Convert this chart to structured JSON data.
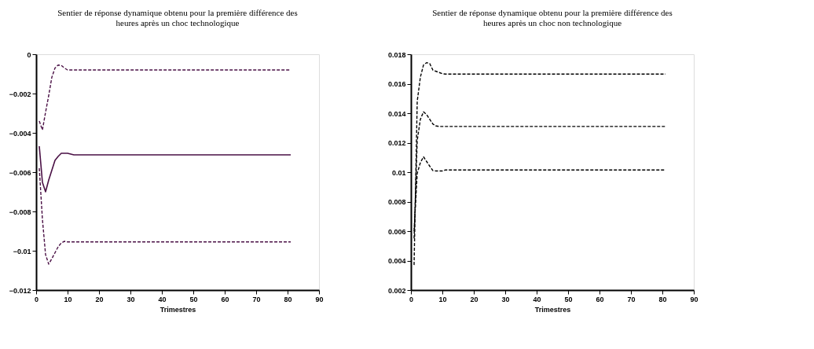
{
  "chart_data": [
    {
      "type": "line",
      "title": "Sentier de réponse dynamique obtenu pour la première différence des heures après un choc technologique",
      "xlabel": "Trimestres",
      "x": [
        1,
        2,
        3,
        4,
        5,
        6,
        7,
        8,
        9,
        10,
        11,
        12,
        81
      ],
      "xlim": [
        0,
        90
      ],
      "xticks": [
        0,
        10,
        20,
        30,
        40,
        50,
        60,
        70,
        80,
        90
      ],
      "ylim": [
        -0.012,
        0
      ],
      "yticks": [
        -0.012,
        -0.01,
        -0.008,
        -0.006,
        -0.004,
        -0.002,
        0
      ],
      "grid": false,
      "marker": "none",
      "series": [
        {
          "color": "#4a1045",
          "line_style": "dashed",
          "values": [
            -0.0034,
            -0.00385,
            -0.00295,
            -0.0021,
            -0.00117,
            -0.0007,
            -0.00055,
            -0.00057,
            -0.0007,
            -0.0008,
            -0.0008,
            -0.0008,
            -0.0008
          ]
        },
        {
          "color": "#4a1045",
          "line_style": "solid",
          "values": [
            -0.00468,
            -0.00652,
            -0.007,
            -0.0064,
            -0.0059,
            -0.0054,
            -0.0052,
            -0.00504,
            -0.00504,
            -0.00504,
            -0.00508,
            -0.00512,
            -0.00512
          ]
        },
        {
          "color": "#4a1045",
          "line_style": "dashed",
          "values": [
            -0.0058,
            -0.0084,
            -0.0102,
            -0.01068,
            -0.0104,
            -0.0101,
            -0.0098,
            -0.0096,
            -0.00952,
            -0.00955,
            -0.00955,
            -0.00955,
            -0.00955
          ]
        }
      ]
    },
    {
      "type": "line",
      "title": "Sentier de réponse dynamique obtenu pour la première différence des heures après un choc non technologique",
      "xlabel": "Trimestres",
      "x": [
        1,
        2,
        3,
        4,
        5,
        6,
        7,
        8,
        9,
        10,
        11,
        12,
        81
      ],
      "xlim": [
        0,
        90
      ],
      "xticks": [
        0,
        10,
        20,
        30,
        40,
        50,
        60,
        70,
        80,
        90
      ],
      "ylim": [
        0.002,
        0.018
      ],
      "yticks": [
        0.002,
        0.004,
        0.006,
        0.008,
        0.01,
        0.012,
        0.014,
        0.016,
        0.018
      ],
      "grid": false,
      "marker": "none",
      "series": [
        {
          "color": "#000000",
          "line_style": "dashed",
          "values": [
            0.0037,
            0.0148,
            0.01644,
            0.01727,
            0.01743,
            0.01736,
            0.01692,
            0.01684,
            0.01676,
            0.01668,
            0.01665,
            0.01665,
            0.01665
          ]
        },
        {
          "color": "#000000",
          "line_style": "dashed",
          "values": [
            0.0055,
            0.01215,
            0.01358,
            0.01409,
            0.0139,
            0.01358,
            0.01326,
            0.01313,
            0.0131,
            0.0131,
            0.0131,
            0.0131,
            0.0131
          ]
        },
        {
          "color": "#000000",
          "line_style": "dashed",
          "values": [
            0.006,
            0.00992,
            0.01064,
            0.01104,
            0.01072,
            0.0104,
            0.0101,
            0.01008,
            0.01008,
            0.01008,
            0.01015,
            0.01015,
            0.01015
          ]
        }
      ]
    }
  ]
}
